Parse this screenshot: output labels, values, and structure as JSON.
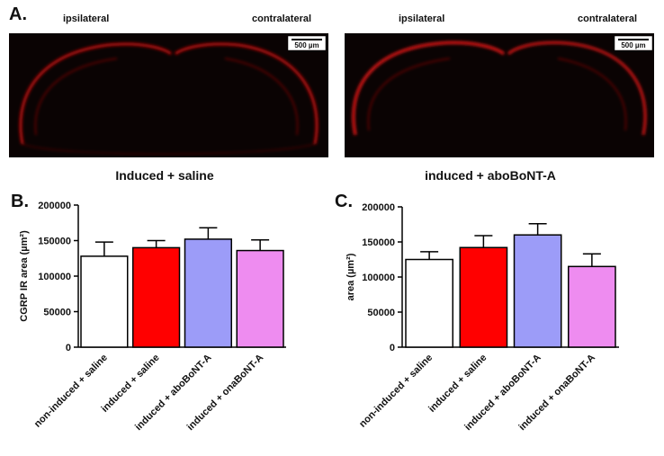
{
  "panel_a": {
    "label": "A.",
    "images": [
      {
        "left_label": "ipsilateral",
        "right_label": "contralateral",
        "scale_bar": "500 µm",
        "caption": "Induced + saline"
      },
      {
        "left_label": "ipsilateral",
        "right_label": "contralateral",
        "scale_bar": "500 µm",
        "caption": "induced + aboBoNT-A"
      }
    ]
  },
  "chart_data": [
    {
      "type": "bar",
      "panel_label": "B.",
      "ylabel": "CGRP IR area (µm²)",
      "categories": [
        "non-induced + saline",
        "induced + saline",
        "induced + aboBoNT-A",
        "induced + onaBoNT-A"
      ],
      "values": [
        128000,
        140000,
        152000,
        136000
      ],
      "errors": [
        20000,
        10000,
        16000,
        15000
      ],
      "colors": [
        "#ffffff",
        "#ff0000",
        "#9c9cf8",
        "#ee8cf0"
      ],
      "ylim": [
        0,
        200000
      ],
      "yticks": [
        0,
        50000,
        100000,
        150000,
        200000
      ]
    },
    {
      "type": "bar",
      "panel_label": "C.",
      "ylabel": "area (µm²)",
      "categories": [
        "non-induced + saline",
        "induced + saline",
        "induced + aboBoNT-A",
        "induced + onaBoNT-A"
      ],
      "values": [
        125000,
        142000,
        160000,
        115000
      ],
      "errors": [
        11000,
        17000,
        16000,
        18000
      ],
      "colors": [
        "#ffffff",
        "#ff0000",
        "#9c9cf8",
        "#ee8cf0"
      ],
      "ylim": [
        0,
        200000
      ],
      "yticks": [
        0,
        50000,
        100000,
        150000,
        200000
      ]
    }
  ]
}
